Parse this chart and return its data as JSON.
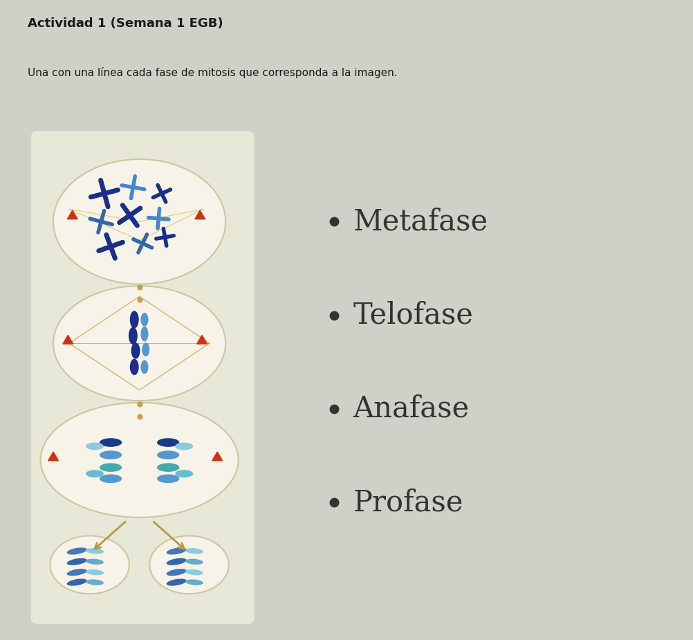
{
  "title": "Actividad 1 (Semana 1 EGB)",
  "subtitle": "Una con una línea cada fase de mitosis que corresponda a la imagen.",
  "title_fontsize": 13,
  "subtitle_fontsize": 11,
  "bg_color": "#e8e8e0",
  "panel_bg": "#bfc9b0",
  "left_panel_bg": "#deded0",
  "phases": [
    "Metafase",
    "Telofase",
    "Anafase",
    "Profase"
  ],
  "phase_fontsize": 30,
  "phase_color": "#333333",
  "bullet_color": "#333333",
  "header_bg": "#d8d8d0"
}
